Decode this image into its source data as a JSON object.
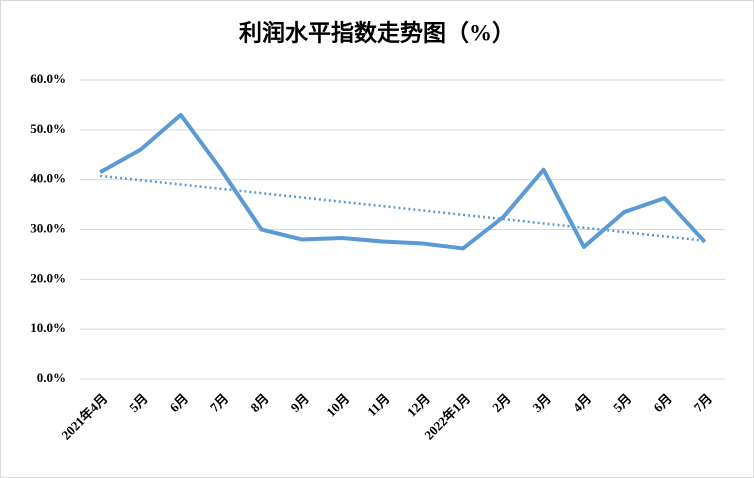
{
  "chart_data": {
    "type": "line",
    "title": "利润水平指数走势图（%）",
    "categories": [
      "2021年4月",
      "5月",
      "6月",
      "7月",
      "8月",
      "9月",
      "10月",
      "11月",
      "12月",
      "2022年1月",
      "2月",
      "3月",
      "4月",
      "5月",
      "6月",
      "7月"
    ],
    "values": [
      41.5,
      46,
      53,
      42,
      30,
      28,
      28.3,
      27.6,
      27.2,
      26.2,
      32.5,
      42,
      26.5,
      33.5,
      36.3,
      27.5
    ],
    "color": "#5b9bd5",
    "trendline": true,
    "ylim": [
      0,
      60
    ],
    "yticks": [
      {
        "value": 0,
        "label": "0.0%"
      },
      {
        "value": 10,
        "label": "10.0%"
      },
      {
        "value": 20,
        "label": "20.0%"
      },
      {
        "value": 30,
        "label": "30.0%"
      },
      {
        "value": 40,
        "label": "40.0%"
      },
      {
        "value": 50,
        "label": "50.0%"
      },
      {
        "value": 60,
        "label": "60.0%"
      }
    ],
    "grid": true
  }
}
